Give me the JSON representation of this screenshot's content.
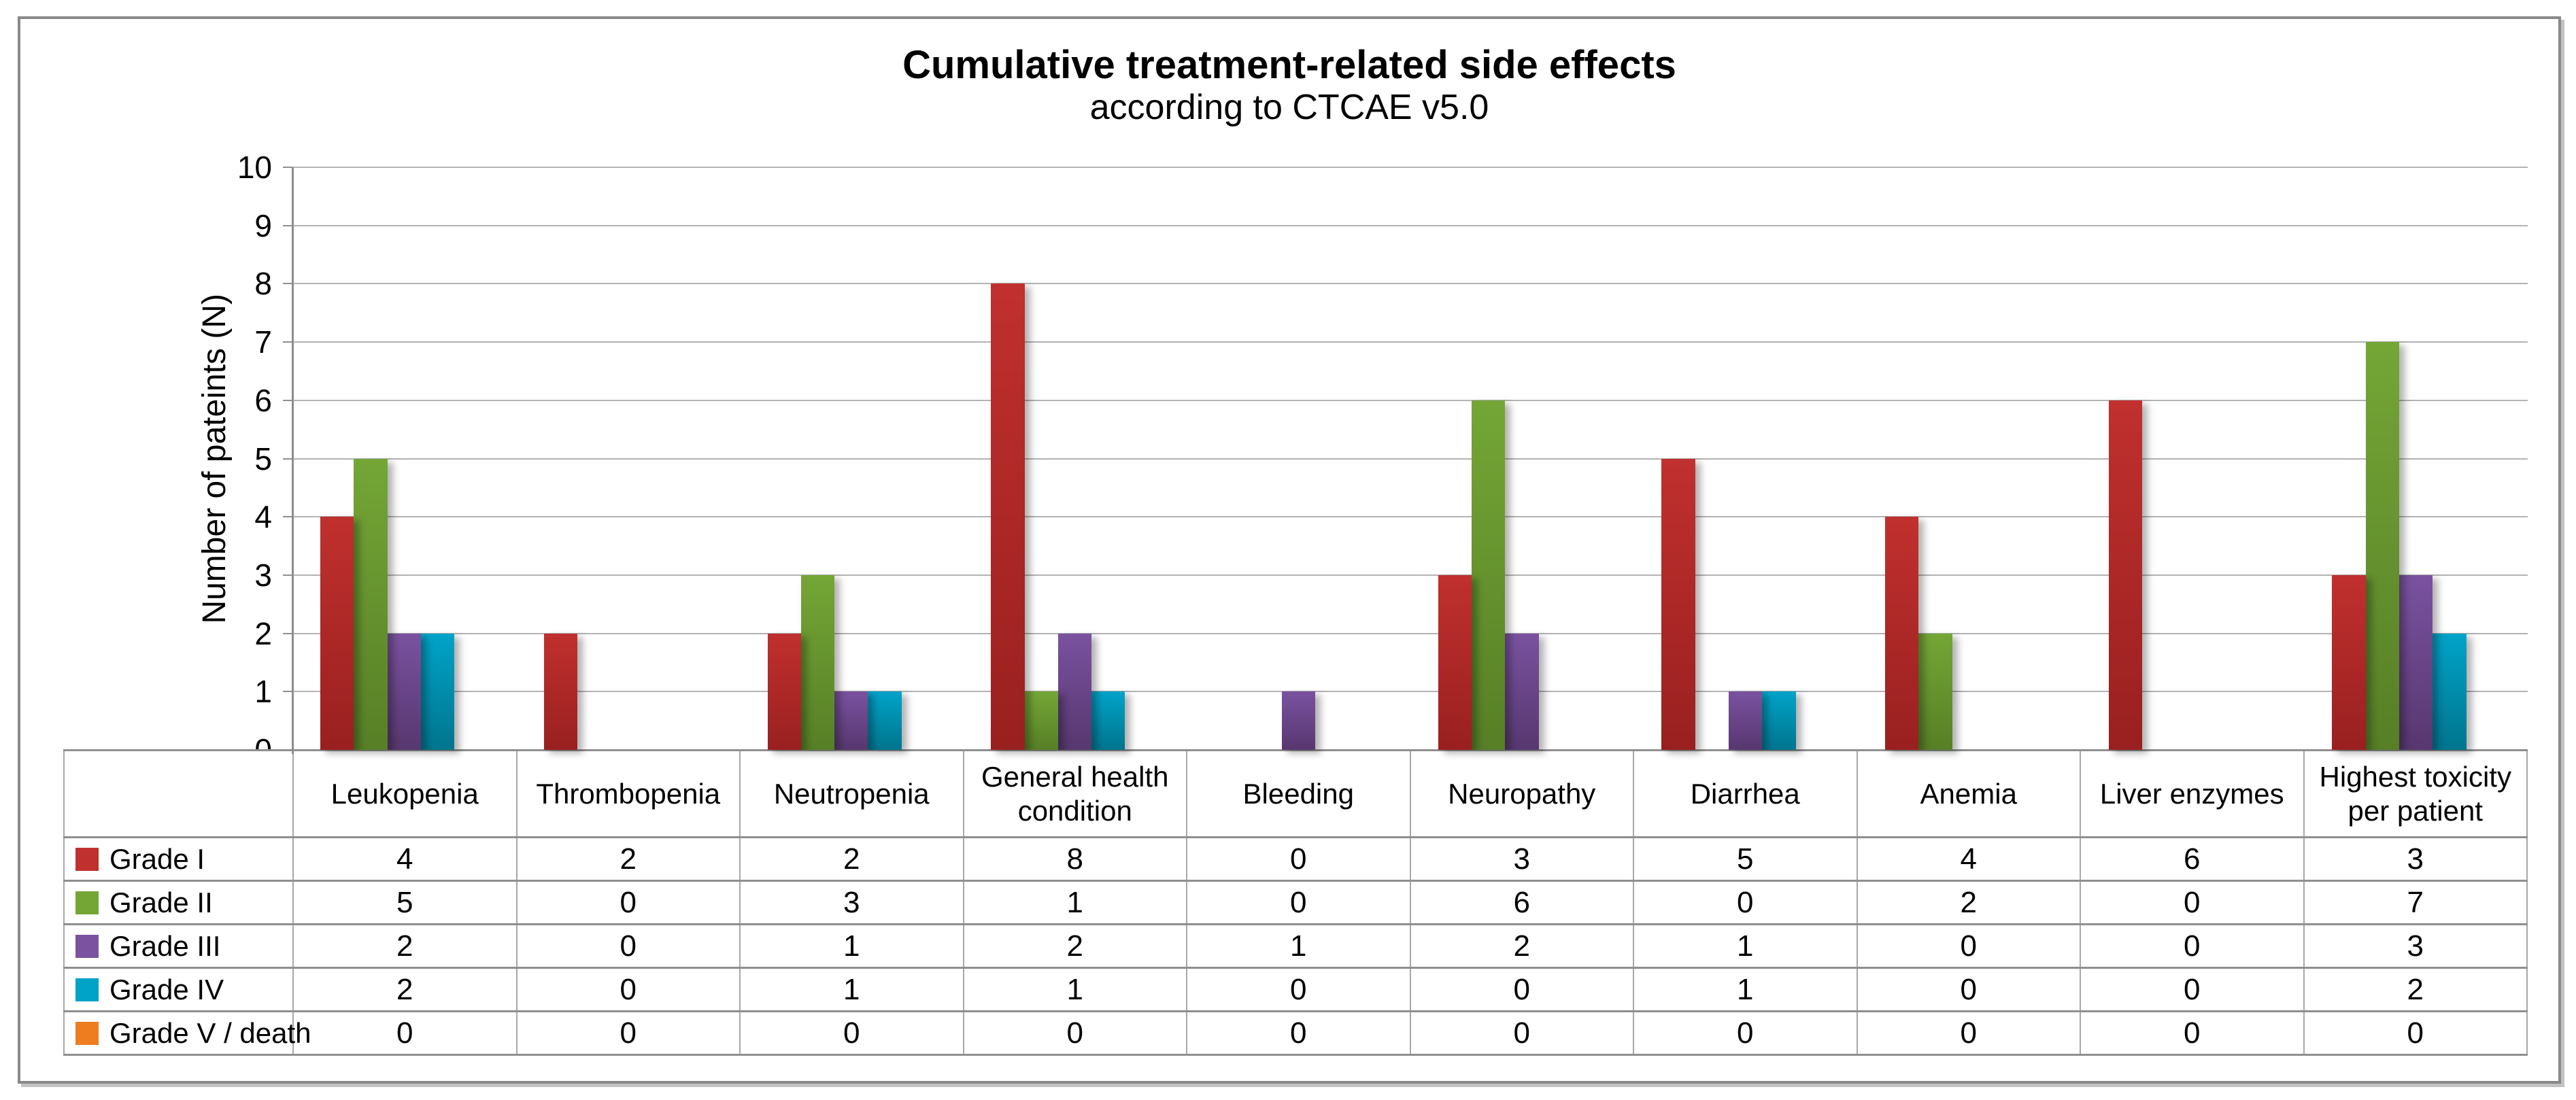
{
  "title": {
    "line1": "Cumulative treatment-related side effects",
    "line2": "according to CTCAE v5.0"
  },
  "y_axis": {
    "label": "Number of pateints (N)",
    "min": 0,
    "max": 10
  },
  "chart_data": {
    "type": "bar",
    "title": "Cumulative treatment-related side effects",
    "subtitle": "according to CTCAE v5.0",
    "xlabel": "",
    "ylabel": "Number of pateints (N)",
    "ylim": [
      0,
      10
    ],
    "y_ticks": [
      0,
      1,
      2,
      3,
      4,
      5,
      6,
      7,
      8,
      9,
      10
    ],
    "grid": true,
    "legend_position": "table-left",
    "categories": [
      "Leukopenia",
      "Thrombopenia",
      "Neutropenia",
      "General health condition",
      "Bleeding",
      "Neuropathy",
      "Diarrhea",
      "Anemia",
      "Liver enzymes",
      "Highest toxicity per patient"
    ],
    "series": [
      {
        "name": "Grade I",
        "color": "#C0302E",
        "color_dark": "#992020",
        "values": [
          4,
          2,
          2,
          8,
          0,
          3,
          5,
          4,
          6,
          3
        ]
      },
      {
        "name": "Grade II",
        "color": "#74A636",
        "color_dark": "#577F26",
        "values": [
          5,
          0,
          3,
          1,
          0,
          6,
          0,
          2,
          0,
          7
        ]
      },
      {
        "name": "Grade III",
        "color": "#7A52A0",
        "color_dark": "#57376F",
        "values": [
          2,
          0,
          1,
          2,
          1,
          2,
          1,
          0,
          0,
          3
        ]
      },
      {
        "name": "Grade IV",
        "color": "#00A3C8",
        "color_dark": "#00758E",
        "values": [
          2,
          0,
          1,
          1,
          0,
          0,
          1,
          0,
          0,
          2
        ]
      },
      {
        "name": "Grade V / death",
        "color": "#ED7D1F",
        "color_dark": "#C45F0A",
        "values": [
          0,
          0,
          0,
          0,
          0,
          0,
          0,
          0,
          0,
          0
        ]
      }
    ]
  }
}
